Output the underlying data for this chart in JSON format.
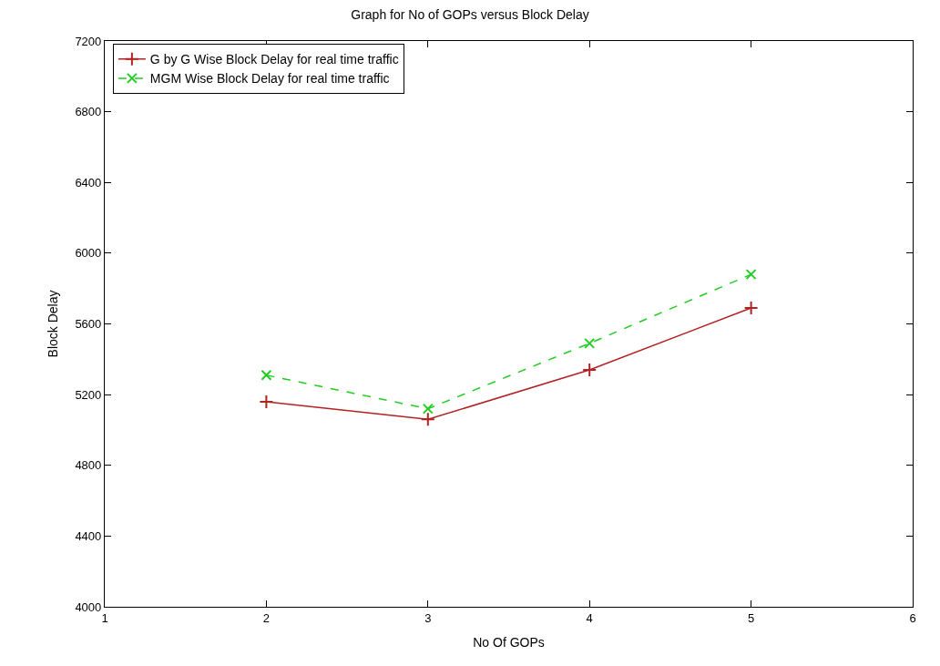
{
  "chart_data": {
    "type": "line",
    "title": "Graph for No of GOPs versus Block Delay",
    "xlabel": "No Of GOPs",
    "ylabel": "Block Delay",
    "x": [
      2,
      3,
      4,
      5
    ],
    "series": [
      {
        "name": "G by G Wise Block Delay for real time traffic",
        "color": "#b22222",
        "values": [
          5160,
          5060,
          5340,
          5690
        ],
        "marker": "plus",
        "line_style": "solid"
      },
      {
        "name": "MGM Wise Block Delay for real time traffic",
        "color": "#22cc22",
        "values": [
          5310,
          5120,
          5490,
          5880
        ],
        "marker": "cross",
        "line_style": "dashed"
      }
    ],
    "xlim": [
      1,
      6
    ],
    "xticks": [
      1,
      2,
      3,
      4,
      5,
      6
    ],
    "ylim": [
      4000,
      7200
    ],
    "yticks": [
      4000,
      4400,
      4800,
      5200,
      5600,
      6000,
      6400,
      6800,
      7200
    ],
    "grid": false,
    "legend": "top left"
  }
}
